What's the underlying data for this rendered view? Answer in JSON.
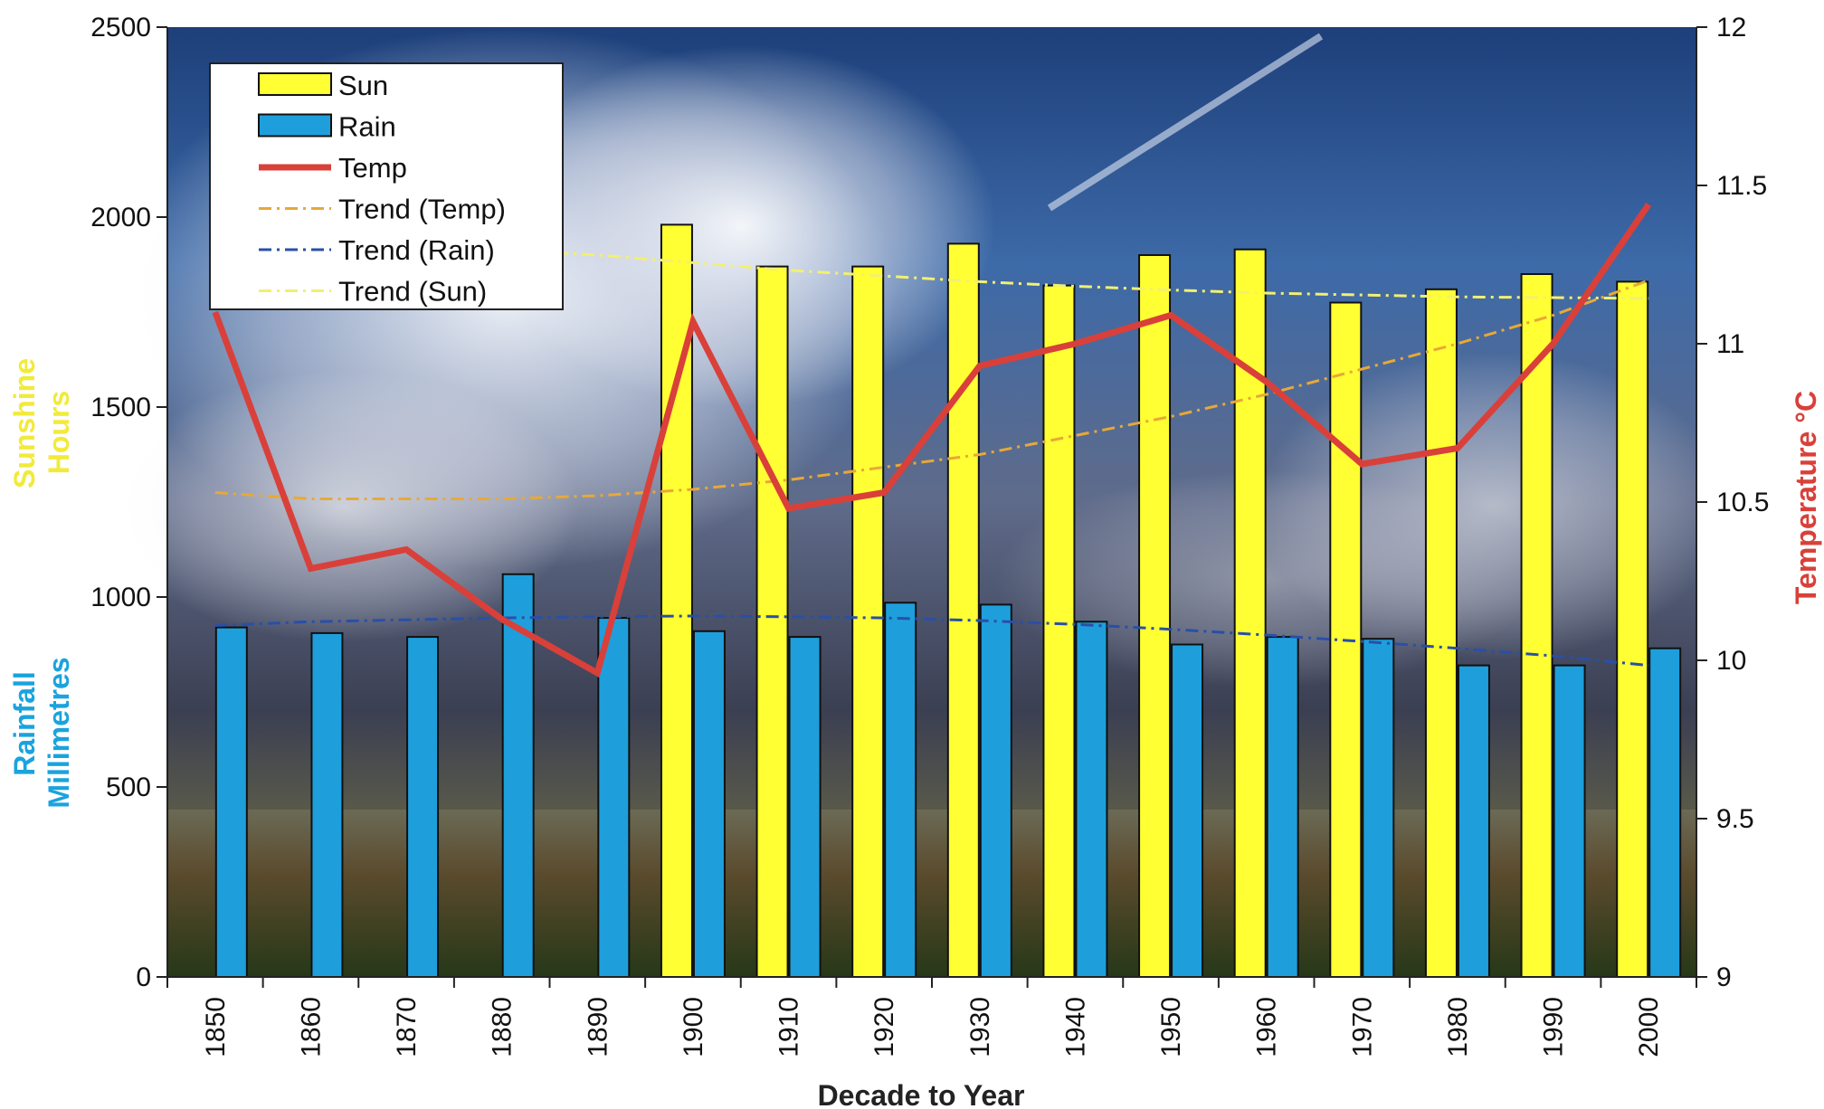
{
  "chart_data": {
    "type": "bar",
    "title": "",
    "xlabel": "Decade to Year",
    "y1label_lines": [
      "Sunshine",
      "Hours"
    ],
    "y1label2_lines": [
      "Rainfall",
      "Millimetres"
    ],
    "y2label": "Temperature °C",
    "categories": [
      "1850",
      "1860",
      "1870",
      "1880",
      "1890",
      "1900",
      "1910",
      "1920",
      "1930",
      "1940",
      "1950",
      "1960",
      "1970",
      "1980",
      "1990",
      "2000"
    ],
    "ylim": [
      0,
      2500
    ],
    "y_ticks": [
      "0",
      "500",
      "1000",
      "1500",
      "2000",
      "2500"
    ],
    "y2lim": [
      9,
      12
    ],
    "y2_ticks": [
      "9",
      "9.5",
      "10",
      "10.5",
      "11",
      "11.5",
      "12"
    ],
    "series": [
      {
        "name": "Sun",
        "kind": "bar",
        "axis": "left",
        "color": "#ffff33",
        "values": [
          null,
          null,
          null,
          null,
          null,
          1980,
          1870,
          1870,
          1930,
          1820,
          1900,
          1915,
          1775,
          1810,
          1850,
          1830
        ]
      },
      {
        "name": "Rain",
        "kind": "bar",
        "axis": "left",
        "color": "#1e9fdc",
        "values": [
          920,
          905,
          895,
          1060,
          945,
          910,
          895,
          985,
          980,
          935,
          875,
          895,
          890,
          820,
          820,
          865
        ]
      },
      {
        "name": "Temp",
        "kind": "line",
        "axis": "right",
        "color": "#d9403a",
        "values": [
          11.1,
          10.29,
          10.35,
          10.13,
          9.96,
          11.07,
          10.48,
          10.53,
          10.93,
          11.0,
          11.09,
          10.88,
          10.62,
          10.67,
          11.0,
          11.44
        ]
      },
      {
        "name": "Trend (Temp)",
        "kind": "trend",
        "axis": "right",
        "color": "#e8a838",
        "values": [
          10.53,
          10.51,
          10.51,
          10.51,
          10.52,
          10.54,
          10.57,
          10.61,
          10.65,
          10.71,
          10.77,
          10.84,
          10.92,
          11.0,
          11.09,
          11.2
        ]
      },
      {
        "name": "Trend (Rain)",
        "kind": "trend",
        "axis": "left",
        "color": "#2a4fa8",
        "values": [
          925,
          935,
          940,
          945,
          948,
          950,
          948,
          945,
          938,
          928,
          915,
          900,
          883,
          865,
          845,
          820
        ]
      },
      {
        "name": "Trend (Sun)",
        "kind": "trend",
        "axis": "left",
        "color": "#f2f070",
        "values": [
          1960,
          1945,
          1930,
          1915,
          1900,
          1880,
          1860,
          1845,
          1830,
          1818,
          1808,
          1800,
          1795,
          1790,
          1788,
          1786
        ]
      }
    ],
    "colors": {
      "sun": "#ffff33",
      "rain": "#1e9fdc",
      "temp": "#d9403a",
      "sunLabel": "#f2ea3a",
      "rainLabel": "#1aa3de"
    }
  }
}
